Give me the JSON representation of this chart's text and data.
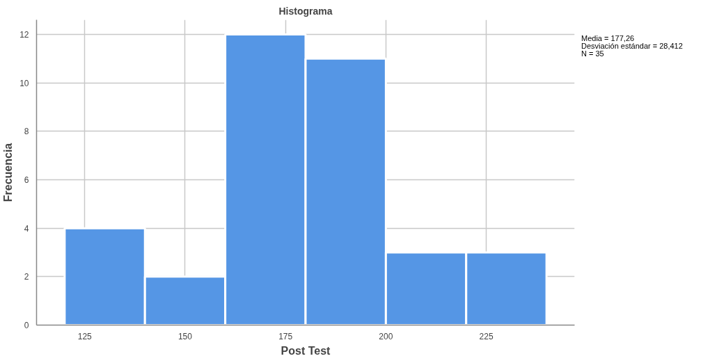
{
  "chart_data": {
    "type": "histogram",
    "title": "Histograma",
    "xlabel": "Post Test",
    "ylabel": "Frecuencia",
    "bins": [
      120,
      140,
      160,
      180,
      200,
      220,
      240
    ],
    "values": [
      4,
      2,
      12,
      11,
      3,
      3
    ],
    "color": "#5596e5",
    "xlim": [
      113,
      247
    ],
    "xticks": [
      125,
      150,
      175,
      200,
      225
    ],
    "ylim": [
      0,
      12.6
    ],
    "yticks": [
      0,
      2,
      4,
      6,
      8,
      10,
      12
    ],
    "grid": true,
    "annotations": [
      "Media = 177,26",
      "Desviación estándar = 28,412",
      "N = 35"
    ]
  }
}
